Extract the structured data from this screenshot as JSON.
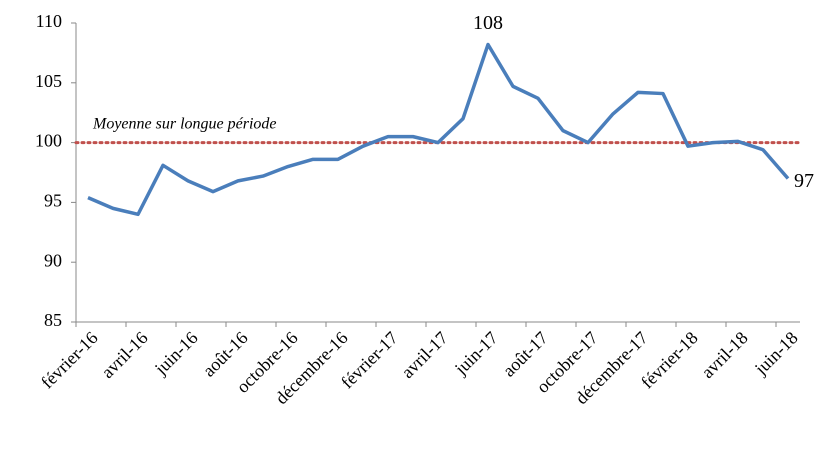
{
  "chart_data": {
    "type": "line",
    "categories": [
      "février-16",
      null,
      "avril-16",
      null,
      "juin-16",
      null,
      "août-16",
      null,
      "octobre-16",
      null,
      "décembre-16",
      null,
      "février-17",
      null,
      "avril-17",
      null,
      "juin-17",
      null,
      "août-17",
      null,
      "octobre-17",
      null,
      "décembre-17",
      null,
      "février-18",
      null,
      "avril-18",
      null,
      "juin-18"
    ],
    "series": [
      {
        "name": null,
        "color": "#4a7ebb",
        "values": [
          95.4,
          94.5,
          94,
          98.1,
          96.8,
          95.9,
          96.8,
          97.2,
          98,
          98.6,
          98.6,
          99.7,
          100.5,
          100.5,
          100,
          102,
          108.2,
          104.7,
          103.7,
          101,
          100,
          102.4,
          104.2,
          104.1,
          99.7,
          100,
          100.1,
          99.4,
          97
        ],
        "value_labels": [
          null,
          null,
          null,
          null,
          null,
          null,
          null,
          null,
          null,
          null,
          null,
          null,
          null,
          null,
          null,
          null,
          "108",
          null,
          null,
          null,
          null,
          null,
          null,
          null,
          null,
          null,
          null,
          null,
          "97"
        ]
      }
    ],
    "reference": {
      "value": 100,
      "label": "Moyenne sur longue période",
      "color": "#c0504d"
    },
    "ylim": [
      85,
      110
    ],
    "yticks": [
      85,
      90,
      95,
      100,
      105,
      110
    ],
    "grid": false
  }
}
